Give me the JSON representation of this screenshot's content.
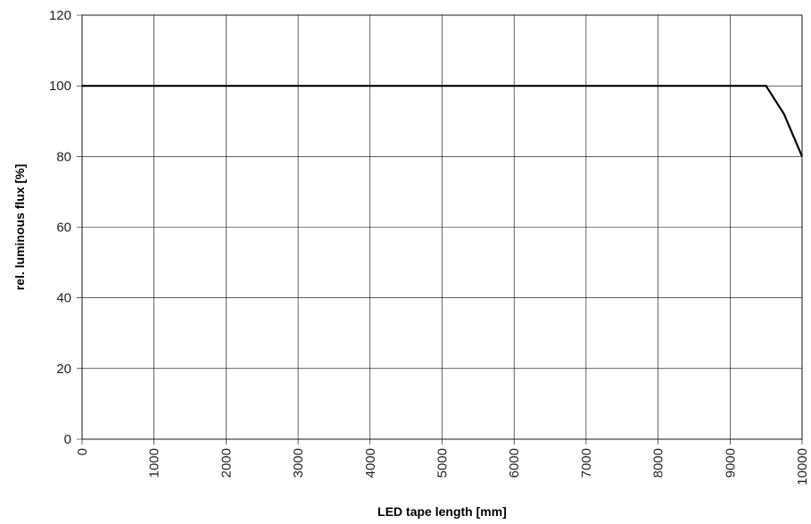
{
  "chart_data": {
    "type": "line",
    "title": "",
    "xlabel": "LED tape length [mm]",
    "ylabel": "rel. luminous flux [%]",
    "xlim": [
      0,
      10000
    ],
    "ylim": [
      0,
      120
    ],
    "x_ticks": [
      "0",
      "1000",
      "2000",
      "3000",
      "4000",
      "5000",
      "6000",
      "7000",
      "8000",
      "9000",
      "10000"
    ],
    "y_ticks": [
      "0",
      "20",
      "40",
      "60",
      "80",
      "100",
      "120"
    ],
    "grid": true,
    "legend": "none",
    "series": [
      {
        "x": [
          0,
          9500,
          9750,
          10000
        ],
        "y": [
          100,
          100,
          92,
          80
        ],
        "color": "#000000"
      }
    ]
  }
}
